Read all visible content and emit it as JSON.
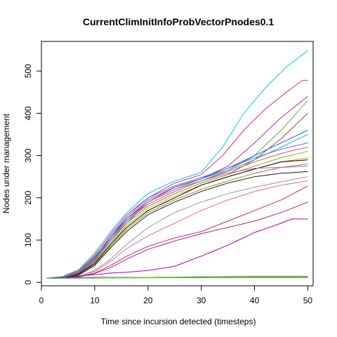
{
  "chart_data": {
    "type": "line",
    "title": "CurrentClimInitInfoProbVectorPnodes0.1",
    "xlabel": "Time since incursion detected (timesteps)",
    "ylabel": "Nodes under management",
    "xlim": [
      0,
      51
    ],
    "ylim": [
      -8,
      570
    ],
    "xticks": [
      0,
      10,
      20,
      30,
      40,
      50
    ],
    "yticks": [
      0,
      100,
      200,
      300,
      400,
      500
    ],
    "grid": false,
    "legend": "none",
    "series": [
      {
        "color": "#00c8e6",
        "keyframes": [
          [
            1,
            10
          ],
          [
            4,
            14
          ],
          [
            7,
            30
          ],
          [
            10,
            70
          ],
          [
            13,
            120
          ],
          [
            16,
            165
          ],
          [
            20,
            210
          ],
          [
            25,
            240
          ],
          [
            30,
            260
          ],
          [
            34,
            320
          ],
          [
            38,
            400
          ],
          [
            42,
            460
          ],
          [
            46,
            510
          ],
          [
            50,
            548
          ]
        ]
      },
      {
        "color": "#e6306e",
        "keyframes": [
          [
            1,
            10
          ],
          [
            4,
            13
          ],
          [
            7,
            28
          ],
          [
            10,
            65
          ],
          [
            13,
            115
          ],
          [
            16,
            160
          ],
          [
            20,
            200
          ],
          [
            25,
            235
          ],
          [
            30,
            255
          ],
          [
            34,
            300
          ],
          [
            38,
            360
          ],
          [
            42,
            410
          ],
          [
            46,
            450
          ],
          [
            49,
            478
          ],
          [
            50,
            478
          ]
        ]
      },
      {
        "color": "#c0289a",
        "keyframes": [
          [
            1,
            10
          ],
          [
            4,
            12
          ],
          [
            7,
            25
          ],
          [
            10,
            60
          ],
          [
            13,
            110
          ],
          [
            16,
            150
          ],
          [
            20,
            190
          ],
          [
            25,
            225
          ],
          [
            30,
            245
          ],
          [
            35,
            275
          ],
          [
            40,
            330
          ],
          [
            45,
            390
          ],
          [
            50,
            440
          ]
        ]
      },
      {
        "color": "#50b450",
        "keyframes": [
          [
            1,
            10
          ],
          [
            4,
            12
          ],
          [
            7,
            26
          ],
          [
            10,
            62
          ],
          [
            13,
            105
          ],
          [
            16,
            145
          ],
          [
            20,
            185
          ],
          [
            25,
            215
          ],
          [
            30,
            240
          ],
          [
            35,
            265
          ],
          [
            40,
            300
          ],
          [
            45,
            360
          ],
          [
            50,
            430
          ]
        ]
      },
      {
        "color": "#a05028",
        "keyframes": [
          [
            1,
            10
          ],
          [
            4,
            13
          ],
          [
            7,
            24
          ],
          [
            10,
            58
          ],
          [
            13,
            100
          ],
          [
            16,
            140
          ],
          [
            20,
            180
          ],
          [
            25,
            210
          ],
          [
            30,
            235
          ],
          [
            35,
            255
          ],
          [
            40,
            290
          ],
          [
            45,
            340
          ],
          [
            50,
            400
          ]
        ]
      },
      {
        "color": "#2060d0",
        "keyframes": [
          [
            1,
            10
          ],
          [
            4,
            12
          ],
          [
            7,
            22
          ],
          [
            10,
            55
          ],
          [
            13,
            105
          ],
          [
            16,
            150
          ],
          [
            20,
            195
          ],
          [
            25,
            225
          ],
          [
            30,
            245
          ],
          [
            35,
            270
          ],
          [
            40,
            300
          ],
          [
            45,
            330
          ],
          [
            50,
            360
          ]
        ]
      },
      {
        "color": "#20b4c8",
        "keyframes": [
          [
            1,
            10
          ],
          [
            4,
            11
          ],
          [
            7,
            20
          ],
          [
            10,
            52
          ],
          [
            13,
            100
          ],
          [
            16,
            140
          ],
          [
            20,
            190
          ],
          [
            25,
            220
          ],
          [
            30,
            245
          ],
          [
            35,
            265
          ],
          [
            40,
            290
          ],
          [
            45,
            320
          ],
          [
            50,
            350
          ]
        ]
      },
      {
        "color": "#6464e6",
        "keyframes": [
          [
            1,
            10
          ],
          [
            4,
            12
          ],
          [
            7,
            24
          ],
          [
            10,
            58
          ],
          [
            13,
            110
          ],
          [
            16,
            155
          ],
          [
            20,
            200
          ],
          [
            25,
            228
          ],
          [
            30,
            248
          ],
          [
            35,
            270
          ],
          [
            40,
            295
          ],
          [
            45,
            315
          ],
          [
            50,
            330
          ]
        ]
      },
      {
        "color": "#f05050",
        "keyframes": [
          [
            1,
            10
          ],
          [
            4,
            12
          ],
          [
            7,
            21
          ],
          [
            10,
            50
          ],
          [
            13,
            100
          ],
          [
            16,
            145
          ],
          [
            20,
            190
          ],
          [
            25,
            220
          ],
          [
            30,
            240
          ],
          [
            35,
            262
          ],
          [
            40,
            285
          ],
          [
            45,
            305
          ],
          [
            50,
            320
          ]
        ]
      },
      {
        "color": "#78b428",
        "keyframes": [
          [
            1,
            10
          ],
          [
            4,
            11
          ],
          [
            7,
            20
          ],
          [
            10,
            48
          ],
          [
            13,
            95
          ],
          [
            16,
            140
          ],
          [
            20,
            180
          ],
          [
            25,
            210
          ],
          [
            30,
            235
          ],
          [
            35,
            255
          ],
          [
            40,
            275
          ],
          [
            45,
            295
          ],
          [
            50,
            310
          ]
        ]
      },
      {
        "color": "#e6a020",
        "keyframes": [
          [
            1,
            10
          ],
          [
            4,
            11
          ],
          [
            7,
            18
          ],
          [
            10,
            45
          ],
          [
            13,
            90
          ],
          [
            16,
            135
          ],
          [
            20,
            175
          ],
          [
            25,
            205
          ],
          [
            30,
            230
          ],
          [
            35,
            250
          ],
          [
            40,
            268
          ],
          [
            45,
            285
          ],
          [
            50,
            295
          ]
        ]
      },
      {
        "color": "#000000",
        "keyframes": [
          [
            1,
            10
          ],
          [
            4,
            11
          ],
          [
            7,
            20
          ],
          [
            10,
            45
          ],
          [
            13,
            90
          ],
          [
            16,
            130
          ],
          [
            20,
            170
          ],
          [
            25,
            200
          ],
          [
            30,
            230
          ],
          [
            35,
            250
          ],
          [
            40,
            268
          ],
          [
            45,
            285
          ],
          [
            50,
            290
          ]
        ]
      },
      {
        "color": "#8c8c1e",
        "keyframes": [
          [
            1,
            10
          ],
          [
            4,
            11
          ],
          [
            7,
            18
          ],
          [
            10,
            42
          ],
          [
            13,
            85
          ],
          [
            16,
            125
          ],
          [
            20,
            165
          ],
          [
            25,
            195
          ],
          [
            30,
            220
          ],
          [
            35,
            240
          ],
          [
            40,
            258
          ],
          [
            45,
            272
          ],
          [
            50,
            280
          ]
        ]
      },
      {
        "color": "#c850c8",
        "keyframes": [
          [
            1,
            10
          ],
          [
            4,
            12
          ],
          [
            7,
            22
          ],
          [
            10,
            52
          ],
          [
            13,
            100
          ],
          [
            16,
            145
          ],
          [
            20,
            185
          ],
          [
            25,
            215
          ],
          [
            30,
            240
          ],
          [
            35,
            258
          ],
          [
            40,
            270
          ],
          [
            45,
            272
          ],
          [
            50,
            275
          ]
        ]
      },
      {
        "color": "#1e1e1e",
        "keyframes": [
          [
            1,
            10
          ],
          [
            4,
            11
          ],
          [
            7,
            17
          ],
          [
            10,
            40
          ],
          [
            13,
            82
          ],
          [
            16,
            120
          ],
          [
            20,
            160
          ],
          [
            25,
            190
          ],
          [
            30,
            215
          ],
          [
            35,
            235
          ],
          [
            40,
            250
          ],
          [
            45,
            258
          ],
          [
            50,
            262
          ]
        ]
      },
      {
        "color": "#969696",
        "keyframes": [
          [
            1,
            10
          ],
          [
            4,
            10
          ],
          [
            7,
            14
          ],
          [
            10,
            28
          ],
          [
            13,
            55
          ],
          [
            16,
            90
          ],
          [
            20,
            130
          ],
          [
            25,
            165
          ],
          [
            30,
            190
          ],
          [
            35,
            210
          ],
          [
            40,
            225
          ],
          [
            45,
            238
          ],
          [
            50,
            250
          ]
        ]
      },
      {
        "color": "#e66496",
        "keyframes": [
          [
            1,
            10
          ],
          [
            4,
            10
          ],
          [
            7,
            14
          ],
          [
            10,
            26
          ],
          [
            13,
            50
          ],
          [
            16,
            80
          ],
          [
            20,
            110
          ],
          [
            25,
            140
          ],
          [
            30,
            170
          ],
          [
            35,
            195
          ],
          [
            40,
            215
          ],
          [
            45,
            230
          ],
          [
            50,
            240
          ]
        ]
      },
      {
        "color": "#d2285a",
        "keyframes": [
          [
            1,
            10
          ],
          [
            4,
            10
          ],
          [
            7,
            13
          ],
          [
            10,
            22
          ],
          [
            13,
            40
          ],
          [
            16,
            62
          ],
          [
            20,
            85
          ],
          [
            25,
            105
          ],
          [
            30,
            120
          ],
          [
            35,
            145
          ],
          [
            40,
            170
          ],
          [
            45,
            195
          ],
          [
            50,
            228
          ]
        ]
      },
      {
        "color": "#b41e78",
        "keyframes": [
          [
            1,
            10
          ],
          [
            4,
            10
          ],
          [
            7,
            13
          ],
          [
            10,
            21
          ],
          [
            13,
            35
          ],
          [
            16,
            55
          ],
          [
            20,
            78
          ],
          [
            25,
            98
          ],
          [
            30,
            115
          ],
          [
            35,
            130
          ],
          [
            40,
            145
          ],
          [
            45,
            165
          ],
          [
            50,
            190
          ]
        ]
      },
      {
        "color": "#a000b4",
        "keyframes": [
          [
            1,
            10
          ],
          [
            4,
            11
          ],
          [
            7,
            15
          ],
          [
            10,
            18
          ],
          [
            13,
            22
          ],
          [
            16,
            24
          ],
          [
            20,
            28
          ],
          [
            25,
            38
          ],
          [
            30,
            62
          ],
          [
            35,
            88
          ],
          [
            40,
            118
          ],
          [
            45,
            140
          ],
          [
            47,
            150
          ],
          [
            50,
            150
          ]
        ]
      },
      {
        "color": "#0a28a0",
        "keyframes": [
          [
            1,
            10
          ],
          [
            5,
            11
          ],
          [
            10,
            12
          ],
          [
            20,
            12
          ],
          [
            30,
            13
          ],
          [
            40,
            14
          ],
          [
            50,
            14
          ]
        ]
      },
      {
        "color": "#14a0b4",
        "keyframes": [
          [
            1,
            10
          ],
          [
            5,
            10
          ],
          [
            10,
            11
          ],
          [
            20,
            11
          ],
          [
            30,
            12
          ],
          [
            40,
            12
          ],
          [
            50,
            12
          ]
        ]
      },
      {
        "color": "#e6c800",
        "keyframes": [
          [
            1,
            10
          ],
          [
            5,
            10
          ],
          [
            10,
            11
          ],
          [
            20,
            12
          ],
          [
            30,
            12
          ],
          [
            40,
            13
          ],
          [
            50,
            13
          ]
        ]
      },
      {
        "color": "#28c850",
        "keyframes": [
          [
            1,
            10
          ],
          [
            5,
            10
          ],
          [
            10,
            10
          ],
          [
            20,
            11
          ],
          [
            30,
            11
          ],
          [
            40,
            11
          ],
          [
            50,
            11
          ]
        ]
      }
    ]
  }
}
